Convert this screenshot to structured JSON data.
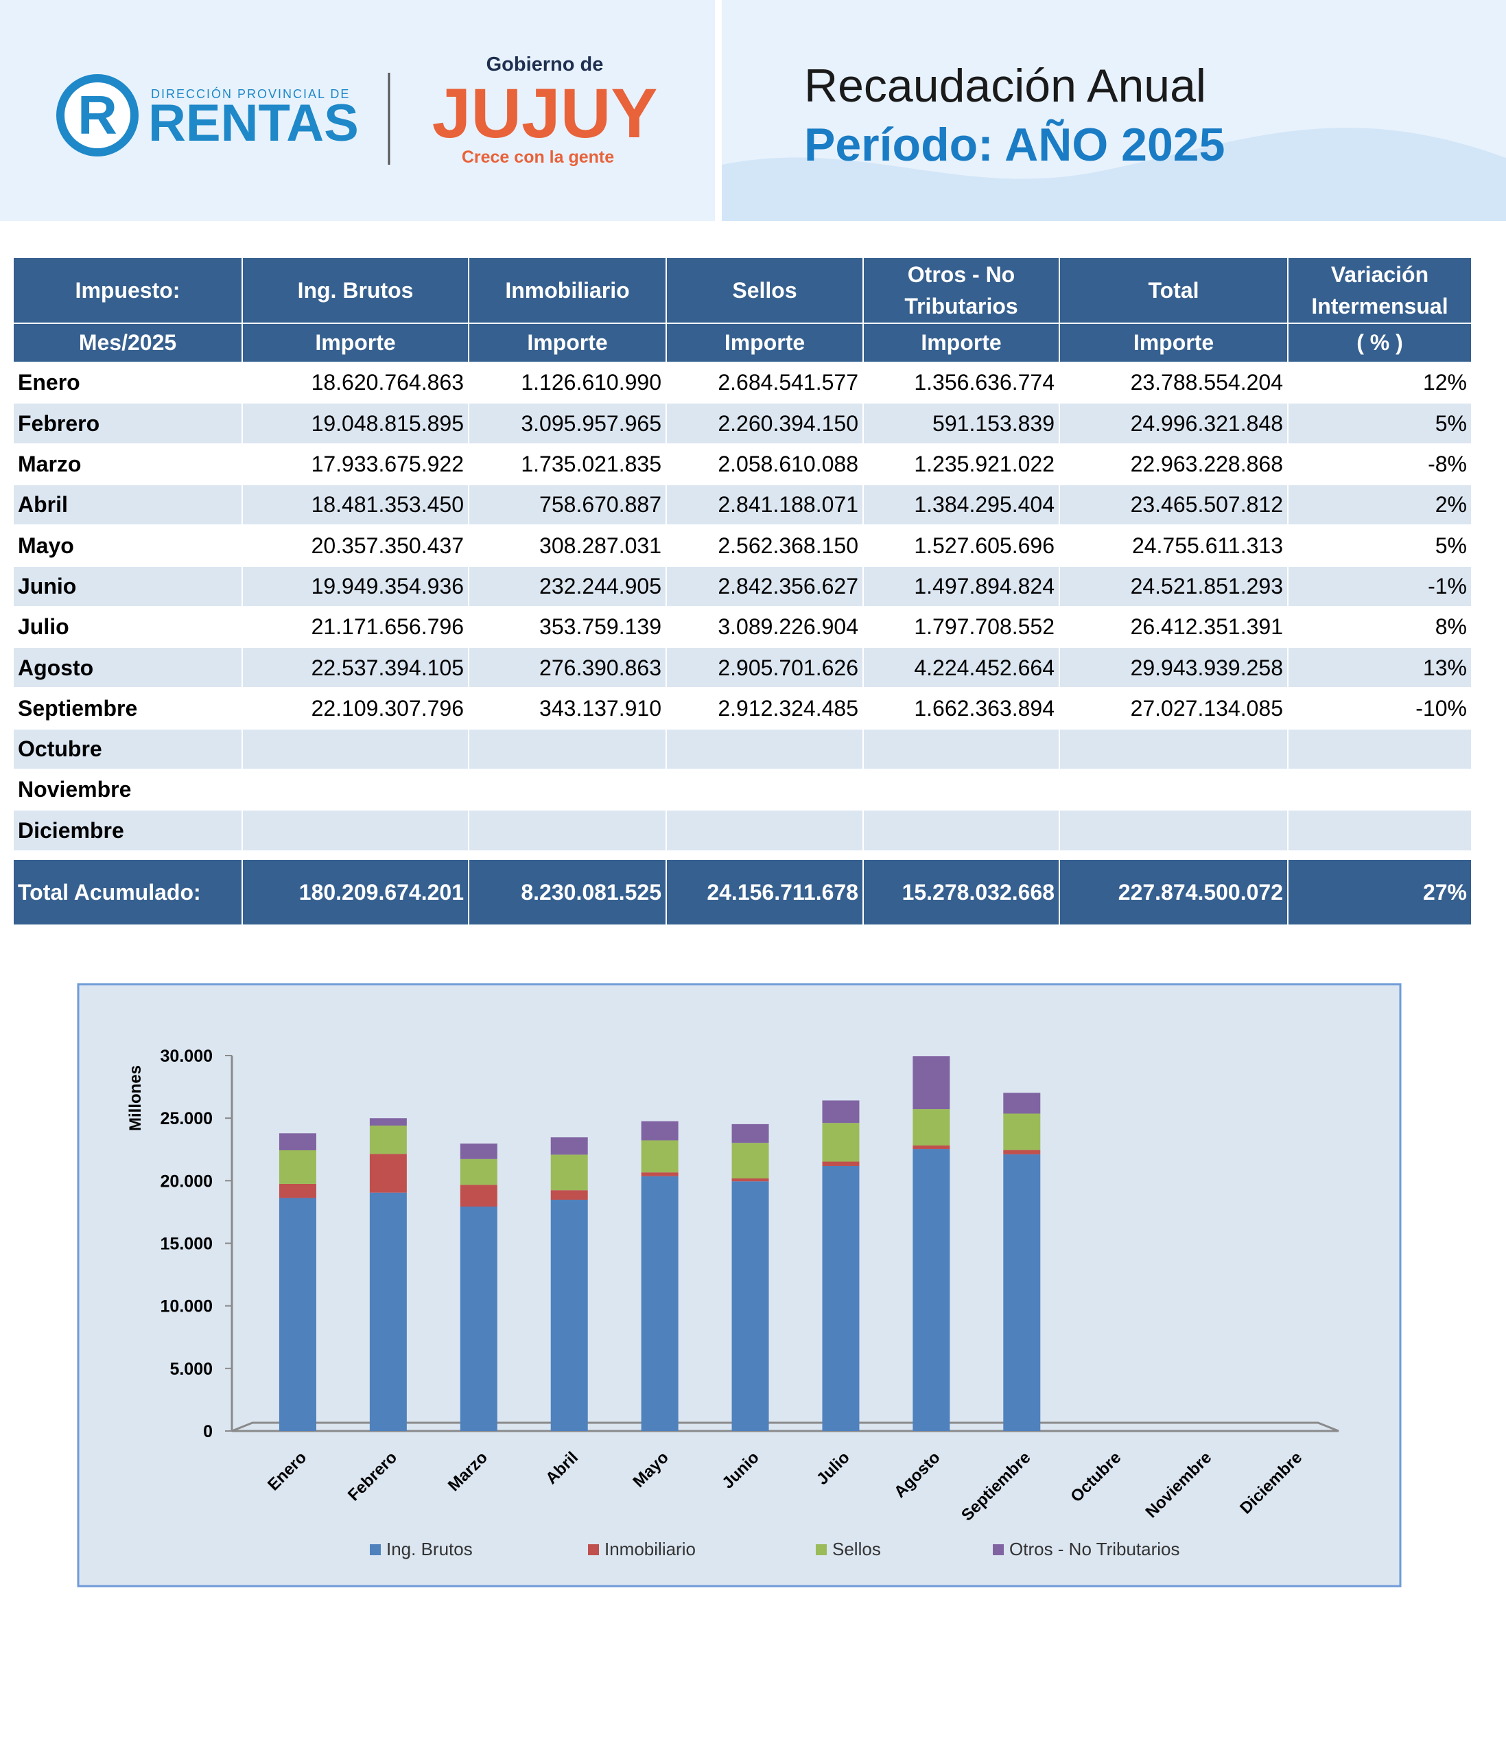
{
  "header": {
    "logo_letter": "R",
    "logo_subtitle": "DIRECCIÓN PROVINCIAL DE",
    "logo_title": "RENTAS",
    "gov_prefix": "Gobierno de",
    "gov_name": "JUJUY",
    "gov_slogan": "Crece con la gente",
    "title": "Recaudación Anual",
    "subtitle": "Período: AÑO 2025"
  },
  "table": {
    "header": [
      [
        "Impuesto:",
        "Ing. Brutos",
        "Inmobiliario",
        "Sellos",
        "Otros - No Tributarios",
        "Total",
        "Variación Intermensual"
      ],
      [
        "Mes/2025",
        "Importe",
        "Importe",
        "Importe",
        "Importe",
        "Importe",
        "( % )"
      ]
    ],
    "rows": [
      [
        "Enero",
        "18.620.764.863",
        "1.126.610.990",
        "2.684.541.577",
        "1.356.636.774",
        "23.788.554.204",
        "12%"
      ],
      [
        "Febrero",
        "19.048.815.895",
        "3.095.957.965",
        "2.260.394.150",
        "591.153.839",
        "24.996.321.848",
        "5%"
      ],
      [
        "Marzo",
        "17.933.675.922",
        "1.735.021.835",
        "2.058.610.088",
        "1.235.921.022",
        "22.963.228.868",
        "-8%"
      ],
      [
        "Abril",
        "18.481.353.450",
        "758.670.887",
        "2.841.188.071",
        "1.384.295.404",
        "23.465.507.812",
        "2%"
      ],
      [
        "Mayo",
        "20.357.350.437",
        "308.287.031",
        "2.562.368.150",
        "1.527.605.696",
        "24.755.611.313",
        "5%"
      ],
      [
        "Junio",
        "19.949.354.936",
        "232.244.905",
        "2.842.356.627",
        "1.497.894.824",
        "24.521.851.293",
        "-1%"
      ],
      [
        "Julio",
        "21.171.656.796",
        "353.759.139",
        "3.089.226.904",
        "1.797.708.552",
        "26.412.351.391",
        "8%"
      ],
      [
        "Agosto",
        "22.537.394.105",
        "276.390.863",
        "2.905.701.626",
        "4.224.452.664",
        "29.943.939.258",
        "13%"
      ],
      [
        "Septiembre",
        "22.109.307.796",
        "343.137.910",
        "2.912.324.485",
        "1.662.363.894",
        "27.027.134.085",
        "-10%"
      ],
      [
        "Octubre"
      ],
      [
        "Noviembre"
      ],
      [
        "Diciembre"
      ]
    ],
    "total": [
      "Total Acumulado:",
      "180.209.674.201",
      "8.230.081.525",
      "24.156.711.678",
      "15.278.032.668",
      "227.874.500.072",
      "27%"
    ]
  },
  "chart_data": {
    "type": "bar",
    "stacked": true,
    "y_label": "Millones",
    "categories": [
      "Enero",
      "Febrero",
      "Marzo",
      "Abril",
      "Mayo",
      "Junio",
      "Julio",
      "Agosto",
      "Septiembre",
      "Octubre",
      "Noviembre",
      "Diciembre"
    ],
    "series": [
      {
        "name": "Ing. Brutos",
        "color": "#4f81bd",
        "values": [
          18620.764863,
          19048.815895,
          17933.675922,
          18481.35345,
          20357.350437,
          19949.354936,
          21171.656796,
          22537.394105,
          22109.307796,
          null,
          null,
          null
        ]
      },
      {
        "name": "Inmobiliario",
        "color": "#c0504d",
        "values": [
          1126.61099,
          3095.957965,
          1735.021835,
          758.670887,
          308.287031,
          232.244905,
          353.759139,
          276.390863,
          343.13791,
          null,
          null,
          null
        ]
      },
      {
        "name": "Sellos",
        "color": "#9bbb59",
        "values": [
          2684.541577,
          2260.39415,
          2058.610088,
          2841.188071,
          2562.36815,
          2842.356627,
          3089.226904,
          2905.701626,
          2912.324485,
          null,
          null,
          null
        ]
      },
      {
        "name": "Otros - No Tributarios",
        "color": "#8064a2",
        "values": [
          1356.636774,
          591.153839,
          1235.921022,
          1384.295404,
          1527.605696,
          1497.894824,
          1797.708552,
          4224.452664,
          1662.363894,
          null,
          null,
          null
        ]
      }
    ],
    "ylim": [
      0,
      30000
    ],
    "yticks": [
      0,
      {
        "value": 5000,
        "label": "5.000"
      },
      {
        "value": 10000,
        "label": "10.000"
      },
      {
        "value": 15000,
        "label": "15.000"
      },
      {
        "value": 20000,
        "label": "20.000"
      },
      {
        "value": 25000,
        "label": "25.000"
      },
      {
        "value": 30000,
        "label": "30.000"
      }
    ],
    "grid": false,
    "legend": "bottom"
  }
}
